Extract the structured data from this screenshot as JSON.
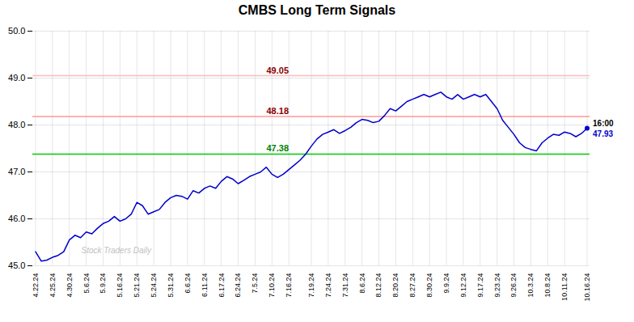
{
  "chart_data": {
    "type": "line",
    "title": "CMBS Long Term Signals",
    "watermark": "Stock Traders Daily",
    "categories": [
      "4.22.24",
      null,
      null,
      "4.25.24",
      null,
      null,
      "4.30.24",
      null,
      null,
      "5.6.24",
      null,
      null,
      "5.9.24",
      null,
      null,
      "5.16.24",
      null,
      null,
      "5.21.24",
      null,
      null,
      "5.24.24",
      null,
      null,
      "5.31.24",
      null,
      null,
      "6.6.24",
      null,
      null,
      "6.11.24",
      null,
      null,
      "6.17.24",
      null,
      null,
      "6.24.24",
      null,
      null,
      "7.5.24",
      null,
      null,
      "7.10.24",
      null,
      null,
      "7.16.24",
      null,
      null,
      null,
      "7.19.24",
      null,
      null,
      "7.24.24",
      null,
      null,
      "7.31.24",
      null,
      null,
      "8.6.24",
      null,
      null,
      "8.12.24",
      null,
      null,
      "8.20.24",
      null,
      null,
      "8.27.24",
      null,
      null,
      "8.30.24",
      null,
      null,
      "9.9.24",
      null,
      null,
      "9.12.24",
      null,
      null,
      "9.17.24",
      null,
      null,
      "9.23.24",
      null,
      null,
      "9.26.24",
      null,
      null,
      "10.3.24",
      null,
      null,
      "10.8.24",
      null,
      null,
      "10.11.24",
      null,
      null,
      null,
      "10.16.24"
    ],
    "values": [
      45.3,
      45.1,
      45.12,
      45.18,
      45.22,
      45.3,
      45.55,
      45.65,
      45.6,
      45.72,
      45.68,
      45.8,
      45.9,
      45.95,
      46.05,
      45.95,
      46.0,
      46.1,
      46.35,
      46.28,
      46.1,
      46.15,
      46.2,
      46.35,
      46.45,
      46.5,
      46.48,
      46.42,
      46.6,
      46.55,
      46.65,
      46.7,
      46.65,
      46.8,
      46.9,
      46.85,
      46.75,
      46.82,
      46.9,
      46.95,
      47.0,
      47.1,
      46.95,
      46.88,
      46.95,
      47.05,
      47.15,
      47.25,
      47.38,
      47.55,
      47.7,
      47.8,
      47.85,
      47.9,
      47.82,
      47.88,
      47.95,
      48.05,
      48.12,
      48.1,
      48.05,
      48.08,
      48.2,
      48.35,
      48.3,
      48.4,
      48.5,
      48.55,
      48.6,
      48.65,
      48.6,
      48.65,
      48.7,
      48.6,
      48.55,
      48.65,
      48.55,
      48.6,
      48.65,
      48.6,
      48.65,
      48.5,
      48.35,
      48.1,
      47.95,
      47.8,
      47.62,
      47.52,
      47.48,
      47.45,
      47.62,
      47.72,
      47.8,
      47.78,
      47.85,
      47.82,
      47.75,
      47.82,
      47.93
    ],
    "color": "#0000cc",
    "annotations": [
      {
        "y": 47.38,
        "text": "47.38",
        "color": "#00cc00",
        "text_color": "green"
      },
      {
        "y": 48.18,
        "text": "48.18",
        "color": "#ff9999",
        "text_color": "darkred"
      },
      {
        "y": 49.05,
        "text": "49.05",
        "color": "#ffbbbb",
        "text_color": "darkred"
      }
    ],
    "end_label": "16:00",
    "end_value": 47.93,
    "ylim": [
      45.0,
      50.0
    ],
    "yticks": [
      45,
      46,
      47,
      48,
      49,
      50
    ],
    "grid": true
  }
}
